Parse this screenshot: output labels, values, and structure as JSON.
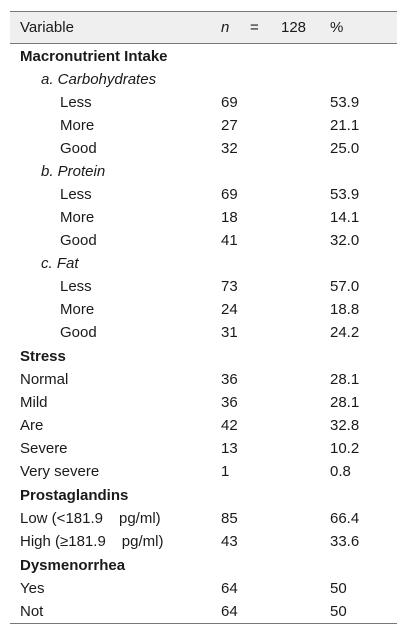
{
  "header": {
    "variable": "Variable",
    "n_symbol": "n",
    "eq": "=",
    "n_value": "128",
    "percent": "%"
  },
  "rows": [
    {
      "kind": "section",
      "label": "Macronutrient Intake"
    },
    {
      "kind": "sub",
      "label": "a. Carbohydrates"
    },
    {
      "kind": "lvl",
      "label": "Less",
      "n": "69",
      "pct": "53.9"
    },
    {
      "kind": "lvl",
      "label": "More",
      "n": "27",
      "pct": "21.1"
    },
    {
      "kind": "lvl",
      "label": "Good",
      "n": "32",
      "pct": "25.0"
    },
    {
      "kind": "sub",
      "label": "b. Protein"
    },
    {
      "kind": "lvl",
      "label": "Less",
      "n": "69",
      "pct": "53.9"
    },
    {
      "kind": "lvl",
      "label": "More",
      "n": "18",
      "pct": "14.1"
    },
    {
      "kind": "lvl",
      "label": "Good",
      "n": "41",
      "pct": "32.0"
    },
    {
      "kind": "sub",
      "label": "c. Fat"
    },
    {
      "kind": "lvl",
      "label": "Less",
      "n": "73",
      "pct": "57.0"
    },
    {
      "kind": "lvl",
      "label": "More",
      "n": "24",
      "pct": "18.8"
    },
    {
      "kind": "lvl",
      "label": "Good",
      "n": "31",
      "pct": "24.2"
    },
    {
      "kind": "section",
      "label": "Stress"
    },
    {
      "kind": "item",
      "label": "Normal",
      "n": "36",
      "pct": "28.1"
    },
    {
      "kind": "item",
      "label": "Mild",
      "n": "36",
      "pct": "28.1"
    },
    {
      "kind": "item",
      "label": "Are",
      "n": "42",
      "pct": "32.8"
    },
    {
      "kind": "item",
      "label": "Severe",
      "n": "13",
      "pct": "10.2"
    },
    {
      "kind": "item",
      "label": "Very severe",
      "n": "1",
      "pct": "0.8"
    },
    {
      "kind": "section",
      "label": "Prostaglandins"
    },
    {
      "kind": "item",
      "label": "Low (<181.9",
      "unit": "pg/ml)",
      "n": "85",
      "pct": "66.4"
    },
    {
      "kind": "item",
      "label": "High (≥181.9",
      "unit": "pg/ml)",
      "n": "43",
      "pct": "33.6"
    },
    {
      "kind": "section",
      "label": "Dysmenorrhea"
    },
    {
      "kind": "item",
      "label": "Yes",
      "n": "64",
      "pct": "50"
    },
    {
      "kind": "item",
      "label": "Not",
      "n": "64",
      "pct": "50"
    }
  ]
}
